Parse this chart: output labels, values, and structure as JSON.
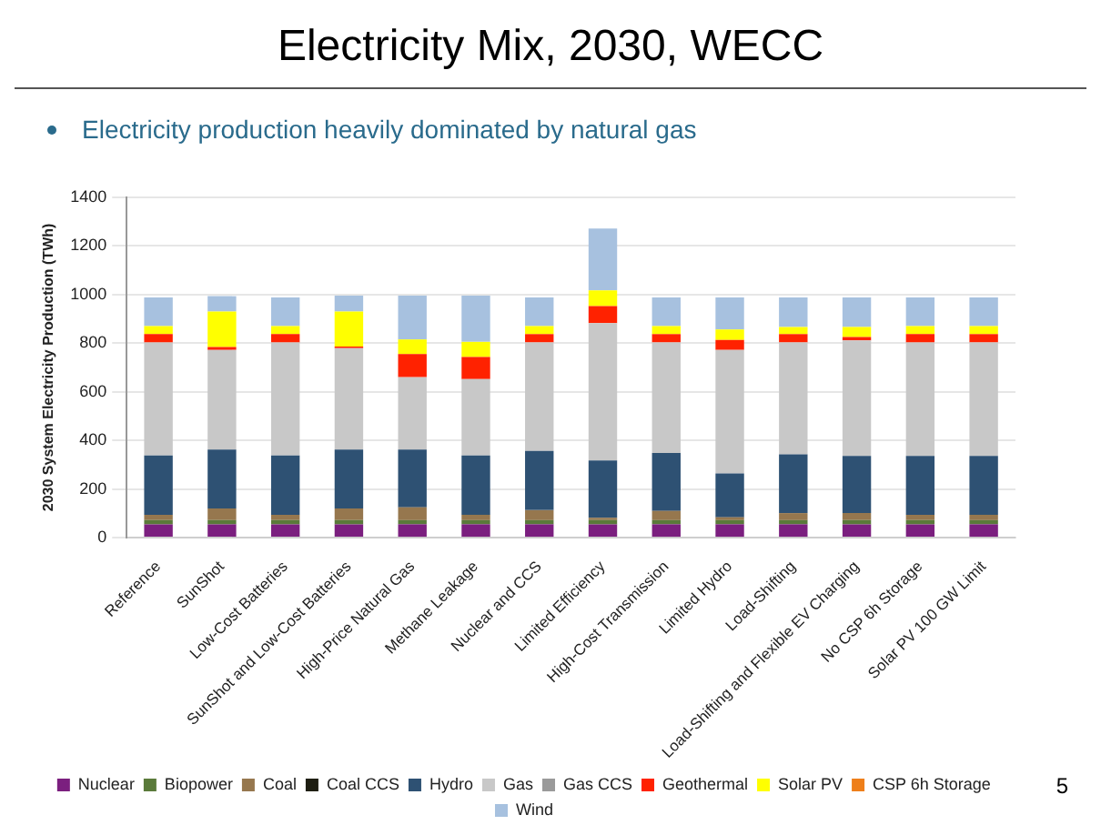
{
  "chart_data": {
    "type": "bar",
    "title": "Electricity Mix, 2030, WECC",
    "subtitle": "Electricity production heavily dominated by natural gas",
    "ylabel": "2030 System Electricity Production (TWh)",
    "annotations": [
      "5"
    ],
    "categories": [
      "Reference",
      "SunShot",
      "Low-Cost Batteries",
      "SunShot and Low-Cost Batteries",
      "High-Price Natural Gas",
      "Methane Leakage",
      "Nuclear and CCS",
      "Limited Efficiency",
      "High-Cost Transmission",
      "Limited Hydro",
      "Load-Shifting",
      "Load-Shifting and Flexible EV Charging",
      "No CSP 6h Storage",
      "Solar PV 100 GW Limit"
    ],
    "stacked": true,
    "ylim": [
      0,
      1400
    ],
    "yticks": [
      0,
      200,
      400,
      600,
      800,
      1000,
      1200,
      1400
    ],
    "grid": "y",
    "legend": "bottom",
    "series": [
      {
        "name": "Nuclear",
        "color": "#7b1f7f",
        "values": [
          55,
          55,
          55,
          55,
          55,
          55,
          55,
          55,
          55,
          55,
          55,
          55,
          55,
          55
        ]
      },
      {
        "name": "Biopower",
        "color": "#5a7a3a",
        "values": [
          17,
          17,
          17,
          17,
          17,
          17,
          17,
          17,
          17,
          17,
          17,
          17,
          17,
          17
        ]
      },
      {
        "name": "Coal",
        "color": "#96774e",
        "values": [
          22,
          48,
          22,
          48,
          53,
          22,
          41,
          10,
          38,
          12,
          29,
          29,
          22,
          22
        ]
      },
      {
        "name": "Coal CCS",
        "color": "#1e1e12",
        "values": [
          0,
          0,
          0,
          0,
          0,
          0,
          0,
          0,
          0,
          0,
          0,
          0,
          0,
          0
        ]
      },
      {
        "name": "Hydro",
        "color": "#2e5173",
        "values": [
          244,
          242,
          244,
          242,
          237,
          244,
          244,
          235,
          238,
          180,
          242,
          235,
          242,
          242
        ]
      },
      {
        "name": "Gas",
        "color": "#c8c8c8",
        "values": [
          465,
          410,
          465,
          417,
          298,
          314,
          446,
          565,
          455,
          508,
          460,
          475,
          467,
          467
        ]
      },
      {
        "name": "Gas CCS",
        "color": "#9a9a9a",
        "values": [
          0,
          0,
          0,
          0,
          0,
          0,
          0,
          0,
          0,
          0,
          0,
          0,
          0,
          0
        ]
      },
      {
        "name": "Geothermal",
        "color": "#ff2200",
        "values": [
          34,
          12,
          34,
          7,
          95,
          91,
          34,
          70,
          34,
          41,
          34,
          14,
          34,
          34
        ]
      },
      {
        "name": "Solar PV",
        "color": "#ffff00",
        "values": [
          33,
          146,
          33,
          144,
          60,
          62,
          33,
          65,
          33,
          43,
          29,
          41,
          33,
          33
        ]
      },
      {
        "name": "CSP 6h Storage",
        "color": "#ee7f1a",
        "values": [
          0,
          0,
          0,
          0,
          0,
          0,
          0,
          0,
          0,
          0,
          0,
          0,
          0,
          0
        ]
      },
      {
        "name": "Wind",
        "color": "#a7c1df",
        "values": [
          118,
          63,
          118,
          65,
          180,
          190,
          118,
          254,
          118,
          132,
          122,
          122,
          118,
          118
        ]
      }
    ]
  }
}
